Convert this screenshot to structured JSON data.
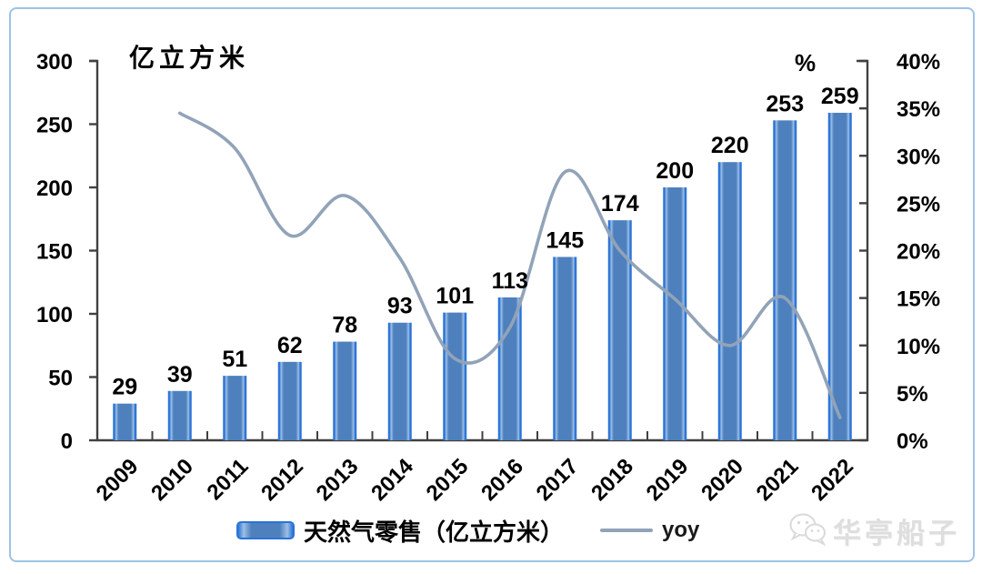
{
  "chart_data": {
    "type": "bar",
    "categories": [
      "2009",
      "2010",
      "2011",
      "2012",
      "2013",
      "2014",
      "2015",
      "2016",
      "2017",
      "2018",
      "2019",
      "2020",
      "2021",
      "2022"
    ],
    "series": [
      {
        "name": "天然气零售（亿立方米）",
        "type": "bar",
        "axis": "left",
        "color": "#4e80bd",
        "values": [
          29,
          39,
          51,
          62,
          78,
          93,
          101,
          113,
          145,
          174,
          200,
          220,
          253,
          259
        ]
      },
      {
        "name": "yoy",
        "type": "line",
        "axis": "right",
        "color": "#92a3b8",
        "values": [
          null,
          34.5,
          30.8,
          21.6,
          25.8,
          19.2,
          8.6,
          11.9,
          28.3,
          20.0,
          14.9,
          10.0,
          15.0,
          2.4
        ]
      }
    ],
    "title": "",
    "left_axis_title": "亿立方米",
    "right_axis_title": "%",
    "left_ticks": [
      "0",
      "50",
      "100",
      "150",
      "200",
      "250",
      "300"
    ],
    "right_ticks": [
      "0%",
      "5%",
      "10%",
      "15%",
      "20%",
      "25%",
      "30%",
      "35%",
      "40%"
    ],
    "left_range": [
      0,
      300
    ],
    "right_range": [
      0,
      40
    ],
    "grid": "off",
    "legend_position": "bottom",
    "bar_labels_shown": true
  },
  "watermark": {
    "text": "华亭船子",
    "icon": "wechat-icon"
  },
  "colors": {
    "bar_fill": "#4e80bd",
    "bar_edge": "#2b74d6",
    "line": "#92a3b8",
    "axis": "#404040",
    "card_border": "#9dc3e6"
  }
}
